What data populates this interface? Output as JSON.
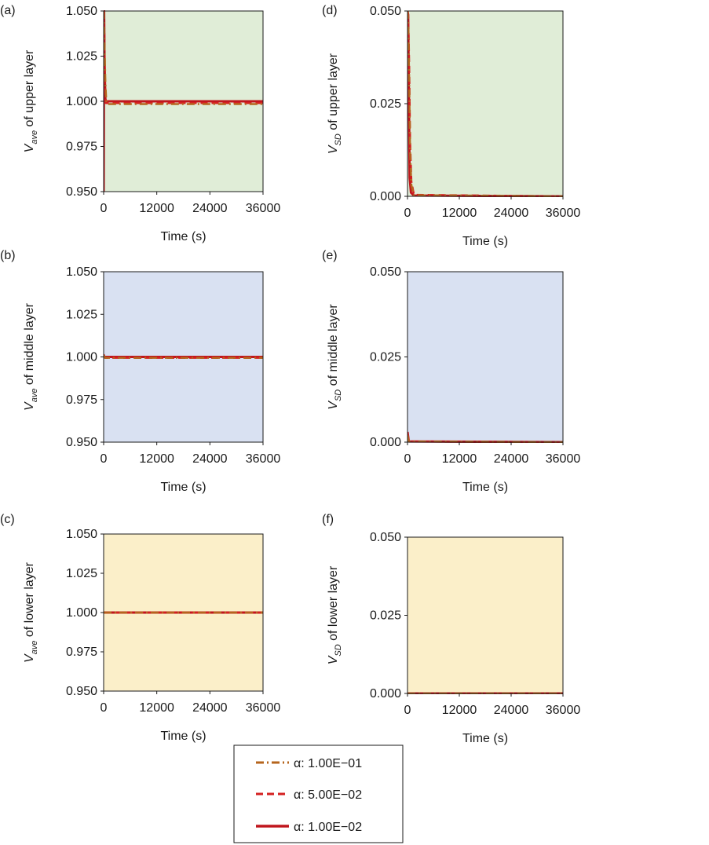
{
  "legend": [
    {
      "label": "α: 1.00E−01",
      "color": "#b5651d",
      "dash": "dashdot"
    },
    {
      "label": "α: 5.00E−02",
      "color": "#d42020",
      "dash": "dashed"
    },
    {
      "label": "α: 1.00E−02",
      "color": "#c0161d",
      "dash": "solid"
    }
  ],
  "chart_data": [
    {
      "panel": "(a)",
      "type": "line",
      "ylabel": {
        "main": "V",
        "sub": "ave",
        "rest": " of upper layer"
      },
      "xlabel": "Time (s)",
      "xlim": [
        0,
        36000
      ],
      "ylim": [
        0.95,
        1.05
      ],
      "xticks": [
        "0",
        "12000",
        "24000",
        "36000"
      ],
      "yticks": [
        "0.950",
        "0.975",
        "1.000",
        "1.025",
        "1.050"
      ],
      "background": "#e0edd7",
      "series": [
        {
          "name": "α: 1.00E−01",
          "x": [
            0,
            200,
            400,
            600,
            800,
            1000,
            36000
          ],
          "y": [
            1.05,
            1.03,
            1.01,
            1.0,
            0.9985,
            0.9985,
            0.9985
          ]
        },
        {
          "name": "α: 5.00E−02",
          "x": [
            0,
            150,
            300,
            500,
            800,
            1200,
            36000
          ],
          "y": [
            1.05,
            1.04,
            1.01,
            0.999,
            0.999,
            0.999,
            0.999
          ]
        },
        {
          "name": "α: 1.00E−02",
          "x": [
            0,
            100,
            200,
            400,
            800,
            36000
          ],
          "y": [
            0.95,
            1.05,
            1.02,
            1.0,
            1.0,
            1.0
          ]
        }
      ]
    },
    {
      "panel": "(d)",
      "type": "line",
      "ylabel": {
        "main": "V",
        "sub": "SD",
        "rest": " of upper layer"
      },
      "xlabel": "Time (s)",
      "xlim": [
        0,
        36000
      ],
      "ylim": [
        0,
        0.05
      ],
      "xticks": [
        "0",
        "12000",
        "24000",
        "36000"
      ],
      "yticks": [
        "0.000",
        "0.025",
        "0.050"
      ],
      "background": "#e0edd7",
      "series": [
        {
          "name": "α: 1.00E−01",
          "x": [
            0,
            200,
            400,
            600,
            900,
            1500,
            36000
          ],
          "y": [
            0.05,
            0.046,
            0.03,
            0.012,
            0.003,
            0.0003,
            0.0
          ]
        },
        {
          "name": "α: 5.00E−02",
          "x": [
            0,
            200,
            400,
            600,
            900,
            1500,
            36000
          ],
          "y": [
            0.05,
            0.048,
            0.035,
            0.015,
            0.004,
            0.0004,
            0.0
          ]
        },
        {
          "name": "α: 1.00E−02",
          "x": [
            0,
            150,
            300,
            500,
            800,
            1500,
            36000
          ],
          "y": [
            0.05,
            0.049,
            0.03,
            0.005,
            0.001,
            0.0002,
            0.0
          ]
        }
      ]
    },
    {
      "panel": "(b)",
      "type": "line",
      "ylabel": {
        "main": "V",
        "sub": "ave",
        "rest": " of middle layer"
      },
      "xlabel": "Time (s)",
      "xlim": [
        0,
        36000
      ],
      "ylim": [
        0.95,
        1.05
      ],
      "xticks": [
        "0",
        "12000",
        "24000",
        "36000"
      ],
      "yticks": [
        "0.950",
        "0.975",
        "1.000",
        "1.025",
        "1.050"
      ],
      "background": "#d9e1f2",
      "series": [
        {
          "name": "α: 1.00E−01",
          "x": [
            0,
            300,
            36000
          ],
          "y": [
            1.001,
            0.9995,
            0.9995
          ]
        },
        {
          "name": "α: 5.00E−02",
          "x": [
            0,
            300,
            36000
          ],
          "y": [
            1.0015,
            0.9995,
            0.9995
          ]
        },
        {
          "name": "α: 1.00E−02",
          "x": [
            0,
            200,
            36000
          ],
          "y": [
            1.0,
            1.0,
            1.0
          ]
        }
      ]
    },
    {
      "panel": "(e)",
      "type": "line",
      "ylabel": {
        "main": "V",
        "sub": "SD",
        "rest": " of middle layer"
      },
      "xlabel": "Time (s)",
      "xlim": [
        0,
        36000
      ],
      "ylim": [
        0,
        0.05
      ],
      "xticks": [
        "0",
        "12000",
        "24000",
        "36000"
      ],
      "yticks": [
        "0.000",
        "0.025",
        "0.050"
      ],
      "background": "#d9e1f2",
      "series": [
        {
          "name": "α: 1.00E−01",
          "x": [
            0,
            300,
            36000
          ],
          "y": [
            0.002,
            0.0002,
            0.0
          ]
        },
        {
          "name": "α: 5.00E−02",
          "x": [
            0,
            300,
            36000
          ],
          "y": [
            0.0025,
            0.0002,
            0.0
          ]
        },
        {
          "name": "α: 1.00E−02",
          "x": [
            0,
            300,
            36000
          ],
          "y": [
            0.003,
            0.0002,
            0.0
          ]
        }
      ]
    },
    {
      "panel": "(c)",
      "type": "line",
      "ylabel": {
        "main": "V",
        "sub": "ave",
        "rest": " of lower layer"
      },
      "xlabel": "Time (s)",
      "xlim": [
        0,
        36000
      ],
      "ylim": [
        0.95,
        1.05
      ],
      "xticks": [
        "0",
        "12000",
        "24000",
        "36000"
      ],
      "yticks": [
        "0.950",
        "0.975",
        "1.000",
        "1.025",
        "1.050"
      ],
      "background": "#fbefc9",
      "series": [
        {
          "name": "α: 1.00E−01",
          "x": [
            0,
            36000
          ],
          "y": [
            1.0,
            1.0
          ]
        },
        {
          "name": "α: 5.00E−02",
          "x": [
            0,
            36000
          ],
          "y": [
            1.0,
            1.0
          ]
        },
        {
          "name": "α: 1.00E−02",
          "x": [
            0,
            36000
          ],
          "y": [
            1.0,
            1.0
          ]
        }
      ]
    },
    {
      "panel": "(f)",
      "type": "line",
      "ylabel": {
        "main": "V",
        "sub": "SD",
        "rest": " of lower layer"
      },
      "xlabel": "Time (s)",
      "xlim": [
        0,
        36000
      ],
      "ylim": [
        0,
        0.05
      ],
      "xticks": [
        "0",
        "12000",
        "24000",
        "36000"
      ],
      "yticks": [
        "0.000",
        "0.025",
        "0.050"
      ],
      "background": "#fbefc9",
      "series": [
        {
          "name": "α: 1.00E−01",
          "x": [
            0,
            36000
          ],
          "y": [
            0.0,
            0.0
          ]
        },
        {
          "name": "α: 5.00E−02",
          "x": [
            0,
            36000
          ],
          "y": [
            0.0,
            0.0
          ]
        },
        {
          "name": "α: 1.00E−02",
          "x": [
            0,
            36000
          ],
          "y": [
            0.0,
            0.0
          ]
        }
      ]
    }
  ]
}
